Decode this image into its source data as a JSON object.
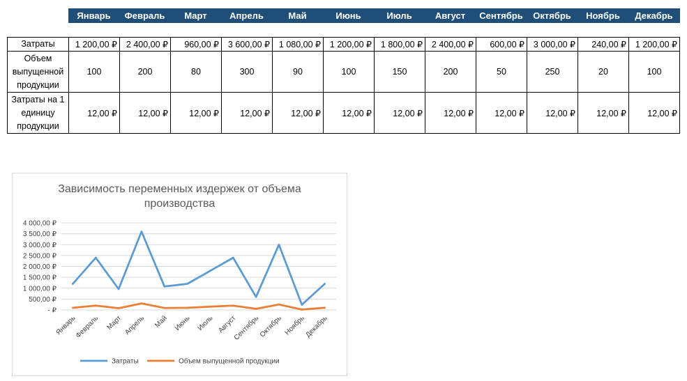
{
  "months": [
    "Январь",
    "Февраль",
    "Март",
    "Апрель",
    "Май",
    "Июнь",
    "Июль",
    "Август",
    "Сентябрь",
    "Октябрь",
    "Ноябрь",
    "Декабрь"
  ],
  "table": {
    "rows": [
      {
        "label": "Затраты",
        "cells": [
          "1 200,00 ₽",
          "2 400,00 ₽",
          "960,00 ₽",
          "3 600,00 ₽",
          "1 080,00 ₽",
          "1 200,00 ₽",
          "1 800,00 ₽",
          "2 400,00 ₽",
          "600,00 ₽",
          "3 000,00 ₽",
          "240,00 ₽",
          "1 200,00 ₽"
        ]
      },
      {
        "label_lines": [
          "Объем",
          "выпущенной",
          "продукции"
        ],
        "cells": [
          "100",
          "200",
          "80",
          "300",
          "90",
          "100",
          "150",
          "200",
          "50",
          "250",
          "20",
          "100"
        ]
      },
      {
        "label_lines": [
          "Затраты на 1",
          "единицу",
          "продукции"
        ],
        "cells": [
          "12,00 ₽",
          "12,00 ₽",
          "12,00 ₽",
          "12,00 ₽",
          "12,00 ₽",
          "12,00 ₽",
          "12,00 ₽",
          "12,00 ₽",
          "12,00 ₽",
          "12,00 ₽",
          "12,00 ₽",
          "12,00 ₽"
        ]
      }
    ]
  },
  "chart_data": {
    "type": "line",
    "title_lines": [
      "Зависимость переменных издержек от объема",
      "производства"
    ],
    "categories": [
      "Январь",
      "Февраль",
      "Март",
      "Апрель",
      "Май",
      "Июнь",
      "Июль",
      "Август",
      "Сентябрь",
      "Октябрь",
      "Ноябрь",
      "Декабрь"
    ],
    "series": [
      {
        "name": "Затраты",
        "color": "#5b9bd5",
        "values": [
          1200,
          2400,
          960,
          3600,
          1080,
          1200,
          1800,
          2400,
          600,
          3000,
          240,
          1200
        ]
      },
      {
        "name": "Объем выпущенной продукции",
        "color": "#ed7d31",
        "values": [
          100,
          200,
          80,
          300,
          90,
          100,
          150,
          200,
          50,
          250,
          20,
          100
        ]
      }
    ],
    "ylim": [
      0,
      4000
    ],
    "yticks": [
      0,
      500,
      1000,
      1500,
      2000,
      2500,
      3000,
      3500,
      4000
    ],
    "ytick_labels": [
      "-   ₽",
      "500,00 ₽",
      "1 000,00 ₽",
      "1 500,00 ₽",
      "2 000,00 ₽",
      "2 500,00 ₽",
      "3 000,00 ₽",
      "3 500,00 ₽",
      "4 000,00 ₽"
    ],
    "grid": true,
    "legend": "bottom"
  }
}
